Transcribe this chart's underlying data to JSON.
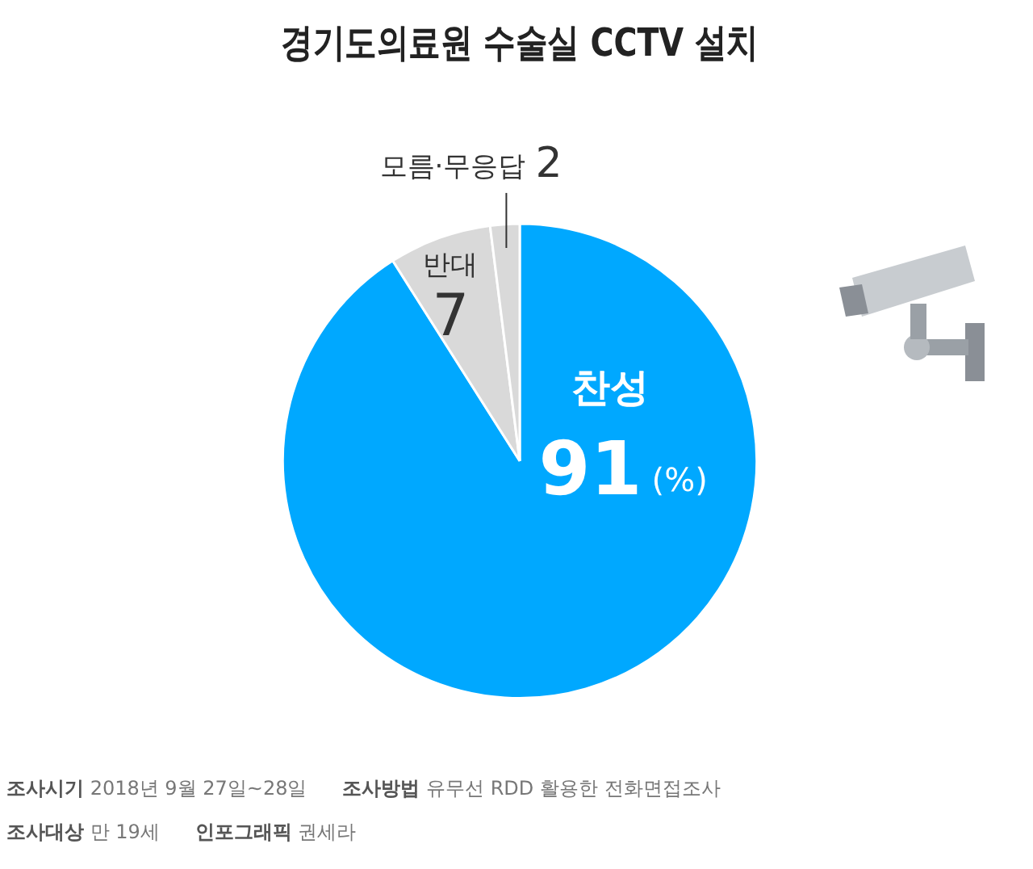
{
  "chart_data": {
    "type": "pie",
    "title": "경기도의료원 수술실 CCTV 설치",
    "categories": [
      "찬성",
      "반대",
      "모름·무응답"
    ],
    "values": [
      91,
      7,
      2
    ],
    "colors": [
      "#00a8ff",
      "#d9d9d9",
      "#d9d9d9"
    ],
    "data_labels": true,
    "legend": false,
    "annotations": [
      "(%)",
      "조사시기 2018년 9월 27일~28일",
      "조사방법 유무선 RDD 활용한 전화면접조사",
      "조사대상 만 19세",
      "인포그래픽 권세라"
    ]
  }
}
